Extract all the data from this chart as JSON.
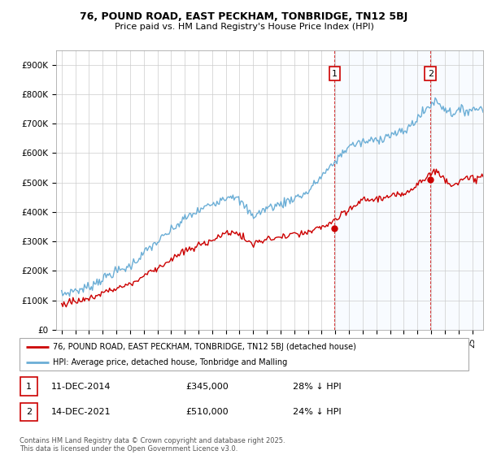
{
  "title1": "76, POUND ROAD, EAST PECKHAM, TONBRIDGE, TN12 5BJ",
  "title2": "Price paid vs. HM Land Registry's House Price Index (HPI)",
  "hpi_color": "#6baed6",
  "price_color": "#cc0000",
  "shaded_color": "#ddeeff",
  "annotation1_label": "1",
  "annotation1_date": "11-DEC-2014",
  "annotation1_price": "£345,000",
  "annotation1_hpi": "28% ↓ HPI",
  "annotation2_label": "2",
  "annotation2_date": "14-DEC-2021",
  "annotation2_price": "£510,000",
  "annotation2_hpi": "24% ↓ HPI",
  "legend_line1": "76, POUND ROAD, EAST PECKHAM, TONBRIDGE, TN12 5BJ (detached house)",
  "legend_line2": "HPI: Average price, detached house, Tonbridge and Malling",
  "footer": "Contains HM Land Registry data © Crown copyright and database right 2025.\nThis data is licensed under the Open Government Licence v3.0.",
  "sale1_x": 2014.95,
  "sale1_y": 345000,
  "sale2_x": 2021.95,
  "sale2_y": 510000,
  "ylim": [
    0,
    950000
  ],
  "xlim_left": 1994.6,
  "xlim_right": 2025.8,
  "yticks": [
    0,
    100000,
    200000,
    300000,
    400000,
    500000,
    600000,
    700000,
    800000,
    900000
  ],
  "ytick_labels": [
    "£0",
    "£100K",
    "£200K",
    "£300K",
    "£400K",
    "£500K",
    "£600K",
    "£700K",
    "£800K",
    "£900K"
  ]
}
